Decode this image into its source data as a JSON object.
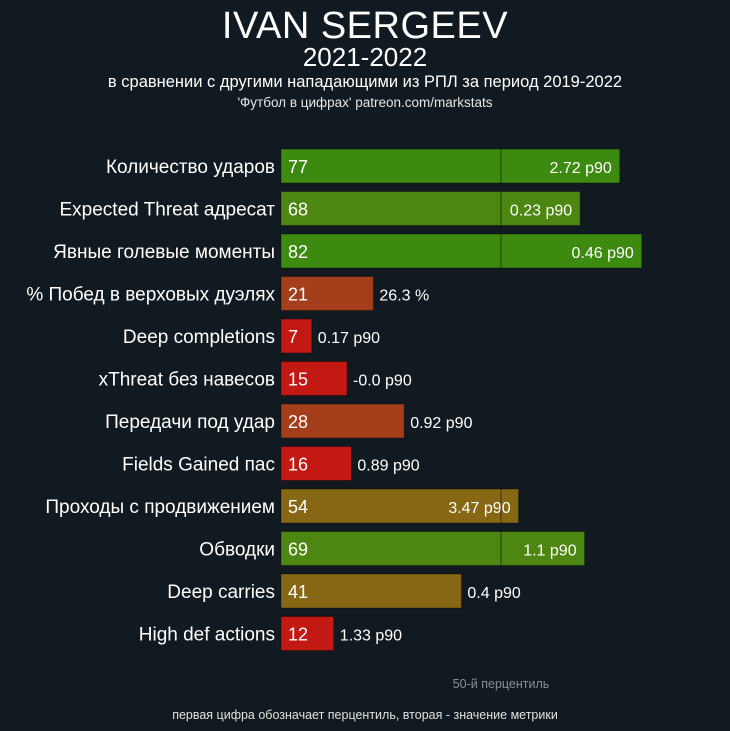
{
  "header": {
    "title": "IVAN SERGEEV",
    "subtitle": "2021-2022",
    "description": "в сравнении с другими нападающими из РПЛ за период 2019-2022",
    "source": "'Футбол в цифрах' patreon.com/markstats"
  },
  "footer": {
    "note": "первая цифра обозначает перцентиль, вторая - значение метрики"
  },
  "chart_data": {
    "type": "bar",
    "orientation": "horizontal",
    "categories": [
      "Количество ударов",
      "Expected Threat адресат",
      "Явные голевые моменты",
      "% Побед в верховых дуэлях",
      "Deep completions",
      "xThreat без навесов",
      "Передачи под удар",
      "Fields Gained пас",
      "Проходы с продвижением",
      "Обводки",
      "Deep carries",
      "High def actions"
    ],
    "values": [
      77,
      68,
      82,
      21,
      7,
      15,
      28,
      16,
      54,
      69,
      41,
      12
    ],
    "metric_labels": [
      "2.72 p90",
      "0.23 p90",
      "0.46 p90",
      "26.3 %",
      "0.17 p90",
      "-0.0 p90",
      "0.92 p90",
      "0.89 p90",
      "3.47 p90",
      "1.1 p90",
      "0.4 p90",
      "1.33 p90"
    ],
    "xlim": [
      0,
      100
    ],
    "reference_line": {
      "value": 50,
      "label": "50-й перцентиль"
    },
    "colors": {
      "low": "#c81a14",
      "mid_low": "#a8401c",
      "mid": "#8a6a14",
      "high": "#4f8a12",
      "top": "#3e8e10",
      "background": "#111a20"
    },
    "grid": false,
    "legend": "none"
  }
}
